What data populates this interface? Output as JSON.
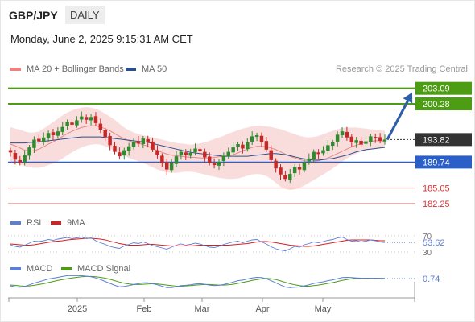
{
  "header": {
    "symbol": "GBP/JPY",
    "timeframe": "DAILY",
    "datetime": "Monday, June 2, 2025 9:15:31 AM CET"
  },
  "credit": "Research © 2025 Trading Central",
  "legend": {
    "main": [
      {
        "name": "MA 20 + Bollinger Bands",
        "color": "#f08080"
      },
      {
        "name": "MA 50",
        "color": "#2c4f8c"
      }
    ],
    "rsi": [
      {
        "name": "RSI",
        "color": "#5b7fd6"
      },
      {
        "name": "9MA",
        "color": "#d81e1e"
      }
    ],
    "macd": [
      {
        "name": "MACD",
        "color": "#5b7fd6"
      },
      {
        "name": "MACD Signal",
        "color": "#4c9c14"
      }
    ]
  },
  "chart_data": {
    "type": "candlestick",
    "x_ticks": [
      "2025",
      "Feb",
      "Mar",
      "Apr",
      "May"
    ],
    "ylim": [
      181.5,
      204.5
    ],
    "current_price": "193.82",
    "levels": [
      {
        "value": 203.09,
        "label": "203.09",
        "role": "resistance",
        "color": "#4c9c14"
      },
      {
        "value": 200.28,
        "label": "200.28",
        "role": "resistance",
        "color": "#4c9c14"
      },
      {
        "value": 189.74,
        "label": "189.74",
        "role": "pivot",
        "color": "#2a5fc7"
      },
      {
        "value": 185.05,
        "label": "185.05",
        "role": "support",
        "color": "#e08080"
      },
      {
        "value": 182.25,
        "label": "182.25",
        "role": "support",
        "color": "#e08080"
      }
    ],
    "forecast_arrow": {
      "from": 193.8,
      "to": 203.09
    },
    "closes": [
      191.5,
      190.2,
      189.6,
      191.0,
      192.4,
      193.8,
      193.5,
      194.2,
      195.0,
      194.6,
      195.3,
      196.1,
      197.0,
      196.5,
      197.3,
      198.0,
      197.4,
      197.9,
      196.8,
      195.6,
      194.3,
      192.8,
      191.6,
      190.8,
      191.9,
      192.6,
      193.4,
      193.1,
      194.0,
      193.3,
      192.0,
      191.0,
      189.6,
      188.4,
      189.5,
      190.8,
      191.6,
      191.0,
      191.4,
      192.2,
      191.7,
      190.6,
      189.6,
      189.2,
      189.8,
      190.9,
      191.6,
      192.4,
      193.0,
      192.2,
      193.3,
      194.4,
      194.6,
      193.4,
      192.0,
      190.1,
      188.6,
      187.5,
      186.7,
      187.6,
      188.9,
      188.4,
      189.7,
      190.4,
      191.6,
      191.2,
      191.9,
      192.8,
      193.3,
      194.7,
      195.3,
      194.2,
      193.3,
      193.7,
      192.9,
      193.5,
      194.4,
      194.1,
      193.6,
      193.82
    ],
    "ma20": [
      193.0,
      192.7,
      192.3,
      191.9,
      191.7,
      191.8,
      192.1,
      192.5,
      193.0,
      193.4,
      193.9,
      194.4,
      194.9,
      195.3,
      195.7,
      196.0,
      196.2,
      196.3,
      196.3,
      196.1,
      195.8,
      195.4,
      194.9,
      194.4,
      194.0,
      193.6,
      193.3,
      193.1,
      192.9,
      192.6,
      192.2,
      191.8,
      191.5,
      191.2,
      191.0,
      190.9,
      190.8,
      190.7,
      190.6,
      190.6,
      190.5,
      190.5,
      190.5,
      190.6,
      190.7,
      190.8,
      190.9,
      191.1,
      191.4,
      191.8,
      192.1,
      192.4,
      192.6,
      192.6,
      192.5,
      192.3,
      192.0,
      191.6,
      191.2,
      190.8,
      190.5,
      190.2,
      190.0,
      189.9,
      189.9,
      190.0,
      190.2,
      190.5,
      190.9,
      191.3,
      191.7,
      192.1,
      192.5,
      192.8,
      193.1,
      193.3,
      193.5,
      193.6,
      193.6,
      193.5
    ],
    "bb_upper": [
      196.1,
      195.8,
      195.6,
      195.3,
      195.1,
      195.1,
      195.3,
      195.8,
      196.4,
      197.0,
      197.6,
      198.2,
      198.7,
      199.1,
      199.4,
      199.6,
      199.7,
      199.6,
      199.4,
      199.0,
      198.5,
      198.0,
      197.4,
      196.7,
      196.0,
      195.5,
      195.1,
      194.8,
      194.6,
      194.4,
      194.2,
      194.0,
      193.8,
      193.6,
      193.4,
      193.2,
      193.1,
      193.0,
      192.9,
      193.0,
      193.1,
      193.3,
      193.6,
      193.9,
      194.2,
      194.5,
      194.9,
      195.2,
      195.5,
      195.8,
      196.0,
      196.2,
      196.3,
      196.3,
      196.2,
      196.1,
      195.9,
      195.7,
      195.4,
      195.1,
      194.8,
      194.5,
      194.3,
      194.2,
      194.3,
      194.5,
      194.8,
      195.1,
      195.4,
      195.7,
      195.9,
      196.0,
      196.0,
      196.0,
      195.9,
      195.8,
      195.7,
      195.6,
      195.5,
      195.4
    ],
    "bb_lower": [
      189.9,
      189.6,
      189.3,
      189.0,
      188.8,
      188.7,
      188.7,
      188.9,
      189.2,
      189.5,
      189.9,
      190.4,
      191.0,
      191.5,
      192.0,
      192.4,
      192.7,
      192.9,
      193.0,
      192.9,
      192.6,
      192.2,
      191.7,
      191.2,
      190.8,
      190.5,
      190.2,
      189.9,
      189.6,
      189.2,
      188.8,
      188.4,
      188.1,
      187.9,
      187.8,
      187.8,
      187.9,
      188.0,
      188.0,
      187.9,
      187.7,
      187.5,
      187.3,
      187.1,
      186.9,
      186.8,
      186.7,
      186.7,
      186.8,
      187.0,
      187.3,
      187.5,
      187.6,
      187.5,
      187.2,
      186.7,
      186.0,
      185.3,
      184.9,
      184.7,
      184.8,
      185.1,
      185.5,
      186.0,
      186.5,
      187.0,
      187.5,
      188.0,
      188.6,
      189.2,
      189.8,
      190.4,
      190.9,
      191.3,
      191.6,
      191.9,
      192.1,
      192.2,
      192.3,
      192.3
    ],
    "ma50": [
      193.2,
      193.2,
      193.2,
      193.2,
      193.3,
      193.3,
      193.4,
      193.5,
      193.6,
      193.7,
      193.8,
      193.9,
      194.0,
      194.1,
      194.2,
      194.3,
      194.3,
      194.3,
      194.3,
      194.3,
      194.2,
      194.1,
      194.0,
      193.9,
      193.8,
      193.7,
      193.6,
      193.5,
      193.4,
      193.3,
      193.1,
      192.9,
      192.7,
      192.5,
      192.3,
      192.1,
      191.9,
      191.7,
      191.5,
      191.4,
      191.3,
      191.2,
      191.1,
      191.0,
      190.9,
      190.8,
      190.8,
      190.8,
      190.8,
      190.8,
      190.8,
      190.9,
      191.0,
      191.1,
      191.2,
      191.3,
      191.3,
      191.2,
      191.1,
      190.9,
      190.7,
      190.5,
      190.3,
      190.2,
      190.1,
      190.1,
      190.2,
      190.3,
      190.4,
      190.6,
      190.8,
      191.0,
      191.3,
      191.6,
      191.8,
      192.0,
      192.1,
      192.2,
      192.3,
      192.4
    ],
    "rsi": {
      "levels": [
        "70",
        "30"
      ],
      "last_label": "53.62",
      "ylim": [
        20,
        80
      ],
      "rsi": [
        48,
        44,
        42,
        47,
        52,
        57,
        56,
        58,
        61,
        59,
        62,
        64,
        66,
        63,
        65,
        67,
        63,
        65,
        58,
        53,
        49,
        44,
        41,
        39,
        45,
        49,
        53,
        51,
        55,
        51,
        46,
        43,
        40,
        37,
        42,
        47,
        50,
        47,
        49,
        52,
        50,
        46,
        42,
        41,
        44,
        49,
        52,
        55,
        57,
        53,
        57,
        60,
        61,
        55,
        50,
        43,
        38,
        35,
        33,
        38,
        44,
        42,
        48,
        51,
        55,
        53,
        56,
        59,
        61,
        65,
        67,
        61,
        57,
        58,
        55,
        57,
        60,
        58,
        55,
        53.62
      ],
      "ma9": [
        50,
        49,
        48,
        47,
        47,
        48,
        50,
        52,
        54,
        56,
        57,
        58,
        60,
        61,
        62,
        63,
        64,
        64,
        63,
        62,
        60,
        57,
        54,
        51,
        49,
        47,
        47,
        47,
        48,
        49,
        49,
        48,
        47,
        46,
        45,
        45,
        45,
        45,
        45,
        46,
        47,
        47,
        47,
        47,
        47,
        47,
        47,
        48,
        49,
        50,
        51,
        53,
        55,
        56,
        56,
        55,
        53,
        51,
        49,
        47,
        46,
        45,
        44,
        44,
        45,
        47,
        49,
        51,
        53,
        55,
        57,
        59,
        60,
        60,
        60,
        60,
        60,
        59,
        58,
        58
      ]
    },
    "macd": {
      "last_label": "0.74",
      "ylim": [
        -1.6,
        1.6
      ],
      "macd": [
        -0.6,
        -0.75,
        -0.85,
        -0.7,
        -0.4,
        -0.1,
        0.15,
        0.4,
        0.65,
        0.8,
        0.95,
        1.1,
        1.25,
        1.25,
        1.25,
        1.25,
        1.15,
        1.05,
        0.85,
        0.55,
        0.2,
        -0.15,
        -0.5,
        -0.75,
        -0.7,
        -0.55,
        -0.35,
        -0.2,
        -0.05,
        -0.05,
        -0.2,
        -0.4,
        -0.65,
        -0.9,
        -0.9,
        -0.75,
        -0.55,
        -0.5,
        -0.4,
        -0.25,
        -0.2,
        -0.3,
        -0.45,
        -0.55,
        -0.5,
        -0.35,
        -0.15,
        0.1,
        0.35,
        0.45,
        0.65,
        0.85,
        0.95,
        0.9,
        0.7,
        0.35,
        -0.05,
        -0.45,
        -0.8,
        -0.9,
        -0.85,
        -0.8,
        -0.6,
        -0.4,
        -0.15,
        0.0,
        0.15,
        0.35,
        0.5,
        0.7,
        0.9,
        0.95,
        0.9,
        0.85,
        0.8,
        0.75,
        0.8,
        0.8,
        0.75,
        0.74
      ],
      "signal": [
        -0.45,
        -0.5,
        -0.6,
        -0.65,
        -0.6,
        -0.5,
        -0.35,
        -0.2,
        0.0,
        0.2,
        0.4,
        0.55,
        0.7,
        0.85,
        0.95,
        1.05,
        1.1,
        1.1,
        1.05,
        0.95,
        0.8,
        0.6,
        0.35,
        0.1,
        -0.1,
        -0.25,
        -0.35,
        -0.35,
        -0.3,
        -0.25,
        -0.2,
        -0.25,
        -0.35,
        -0.45,
        -0.55,
        -0.65,
        -0.65,
        -0.6,
        -0.55,
        -0.45,
        -0.4,
        -0.35,
        -0.35,
        -0.4,
        -0.45,
        -0.45,
        -0.4,
        -0.3,
        -0.15,
        0.05,
        0.2,
        0.4,
        0.55,
        0.7,
        0.75,
        0.7,
        0.55,
        0.3,
        0.05,
        -0.2,
        -0.4,
        -0.55,
        -0.65,
        -0.65,
        -0.55,
        -0.45,
        -0.3,
        -0.15,
        0.0,
        0.2,
        0.4,
        0.55,
        0.7,
        0.75,
        0.8,
        0.8,
        0.8,
        0.8,
        0.78,
        0.76
      ]
    }
  }
}
